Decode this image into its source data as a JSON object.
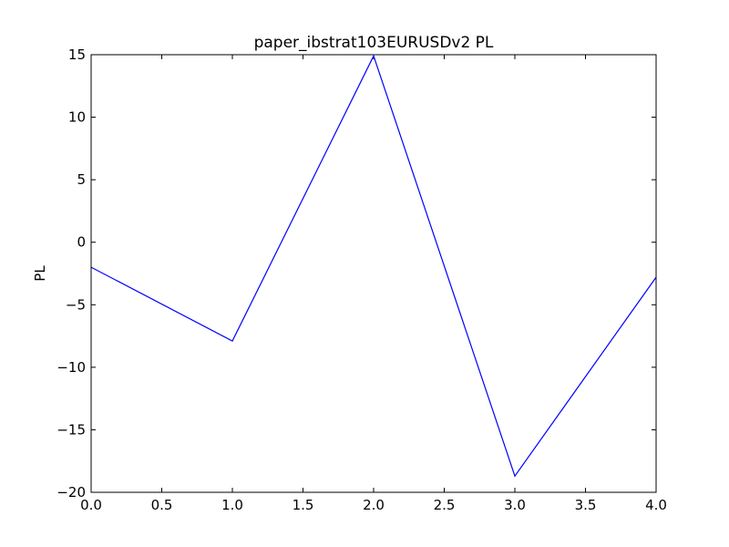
{
  "chart_data": {
    "type": "line",
    "title": "paper_ibstrat103EURUSDv2 PL",
    "xlabel": "",
    "ylabel": "PL",
    "xlim": [
      0,
      4
    ],
    "ylim": [
      -20,
      15
    ],
    "x_ticks": [
      0.0,
      0.5,
      1.0,
      1.5,
      2.0,
      2.5,
      3.0,
      3.5,
      4.0
    ],
    "x_tick_labels": [
      "0.0",
      "0.5",
      "1.0",
      "1.5",
      "2.0",
      "2.5",
      "3.0",
      "3.5",
      "4.0"
    ],
    "y_ticks": [
      15,
      10,
      5,
      0,
      -5,
      -10,
      -15,
      -20
    ],
    "y_tick_labels": [
      "15",
      "10",
      "5",
      "0",
      "−5",
      "−10",
      "−15",
      "−20"
    ],
    "grid": false,
    "series": [
      {
        "color": "#0000ff",
        "x": [
          0,
          1,
          2,
          3,
          4
        ],
        "y": [
          -2.0,
          -7.9,
          14.9,
          -18.7,
          -2.8
        ]
      }
    ]
  }
}
